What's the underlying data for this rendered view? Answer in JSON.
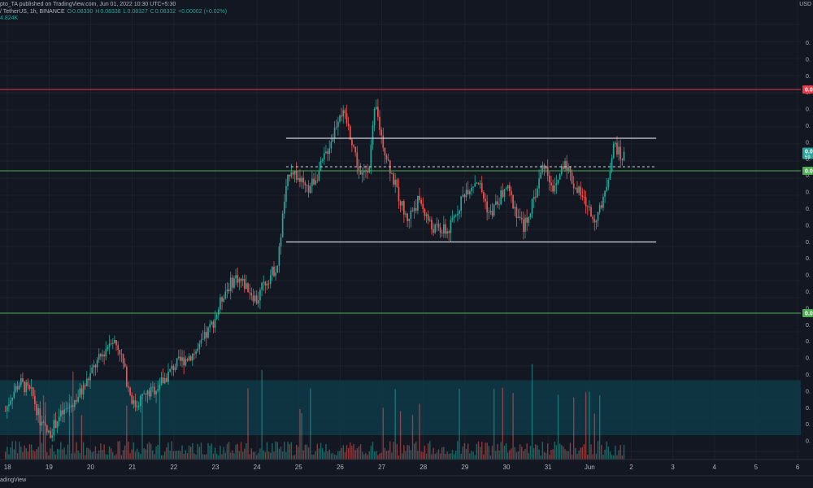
{
  "header": {
    "published_line": "pto_TA published on TradingView.com, Jun 01, 2022 10:30 UTC+5:30",
    "symbol_line": "/ TetherUS, 1h, BINANCE",
    "ohlc": {
      "o_label": "O",
      "o": "0.08330",
      "h_label": "H",
      "h": "0.08338",
      "l_label": "L",
      "l": "0.08327",
      "c_label": "C",
      "c": "0.08332",
      "change": "+0.00002 (+0.02%)"
    },
    "volume": "4.824K"
  },
  "price_axis": {
    "unit": "USD",
    "tick_labels": [
      "0.",
      "0.",
      "0.",
      "0.",
      "0.",
      "0.",
      "0.",
      "0.",
      "0.",
      "0.",
      "0.",
      "0.",
      "0.",
      "0.",
      "0.",
      "0.",
      "0.",
      "0.",
      "0.",
      "0.",
      "0.",
      "0.",
      "0.",
      "0.",
      "0."
    ],
    "tag_labels": {
      "resistance": "0.0",
      "current": "0.0",
      "current_sub": "59",
      "support_upper": "0.0",
      "support_lower": "0.0"
    }
  },
  "footer": {
    "brand": "adingView"
  },
  "chart_data": {
    "type": "candlestick",
    "timeframe": "1h",
    "x_tick_labels": [
      "18",
      "19",
      "20",
      "21",
      "22",
      "23",
      "24",
      "25",
      "26",
      "27",
      "28",
      "29",
      "30",
      "31",
      "Jun",
      "2",
      "3",
      "4",
      "5",
      "6"
    ],
    "y_axis_note": "price tick labels are cut off at the right edge; y values below are relative to the visible range",
    "y_range": [
      0,
      100
    ],
    "horizontal_lines": [
      {
        "name": "resistance",
        "y": 90,
        "color": "#f23645"
      },
      {
        "name": "support-upper",
        "y": 70,
        "color": "#4caf50"
      },
      {
        "name": "support-lower",
        "y": 35,
        "color": "#4caf50"
      }
    ],
    "range_box": {
      "top": 78,
      "bottom": 52.5,
      "x_start_day": 24.7,
      "x_end_day": 33.6,
      "color": "#d1d4dc"
    },
    "mid_line": {
      "y": 71,
      "x_start_day": 24.7,
      "x_end_day": 33.6,
      "dashed": true
    },
    "demand_zone": {
      "y_top": 18.5,
      "y_bottom": 5,
      "color": "#0e3a47"
    },
    "price_path_anchors": [
      [
        17.95,
        11
      ],
      [
        18.1,
        15
      ],
      [
        18.3,
        18
      ],
      [
        18.6,
        15
      ],
      [
        18.8,
        8
      ],
      [
        19.0,
        5
      ],
      [
        19.2,
        9
      ],
      [
        19.5,
        12
      ],
      [
        19.8,
        16
      ],
      [
        20.1,
        22
      ],
      [
        20.3,
        25
      ],
      [
        20.5,
        29
      ],
      [
        20.7,
        26
      ],
      [
        20.9,
        17
      ],
      [
        21.05,
        12
      ],
      [
        21.2,
        14
      ],
      [
        21.5,
        16
      ],
      [
        21.8,
        19
      ],
      [
        22.0,
        22
      ],
      [
        22.3,
        24
      ],
      [
        22.6,
        26
      ],
      [
        22.8,
        30
      ],
      [
        23.0,
        34
      ],
      [
        23.2,
        40
      ],
      [
        23.5,
        44
      ],
      [
        23.8,
        41
      ],
      [
        24.0,
        38
      ],
      [
        24.15,
        42
      ],
      [
        24.3,
        44
      ],
      [
        24.5,
        47
      ],
      [
        24.65,
        62
      ],
      [
        24.8,
        71
      ],
      [
        25.0,
        68
      ],
      [
        25.2,
        65
      ],
      [
        25.5,
        70
      ],
      [
        25.8,
        78
      ],
      [
        26.0,
        85
      ],
      [
        26.15,
        82
      ],
      [
        26.3,
        77
      ],
      [
        26.5,
        68
      ],
      [
        26.7,
        72
      ],
      [
        26.85,
        86
      ],
      [
        27.0,
        78
      ],
      [
        27.3,
        67
      ],
      [
        27.6,
        58
      ],
      [
        27.9,
        63
      ],
      [
        28.2,
        56
      ],
      [
        28.6,
        55
      ],
      [
        29.0,
        65
      ],
      [
        29.3,
        68
      ],
      [
        29.6,
        59
      ],
      [
        30.0,
        66
      ],
      [
        30.4,
        56
      ],
      [
        30.6,
        61
      ],
      [
        30.9,
        72
      ],
      [
        31.15,
        65
      ],
      [
        31.4,
        73
      ],
      [
        31.6,
        67
      ],
      [
        31.9,
        62
      ],
      [
        32.1,
        58
      ],
      [
        32.3,
        61
      ],
      [
        32.45,
        69
      ],
      [
        32.6,
        77
      ],
      [
        32.75,
        73
      ],
      [
        32.85,
        74
      ]
    ]
  }
}
